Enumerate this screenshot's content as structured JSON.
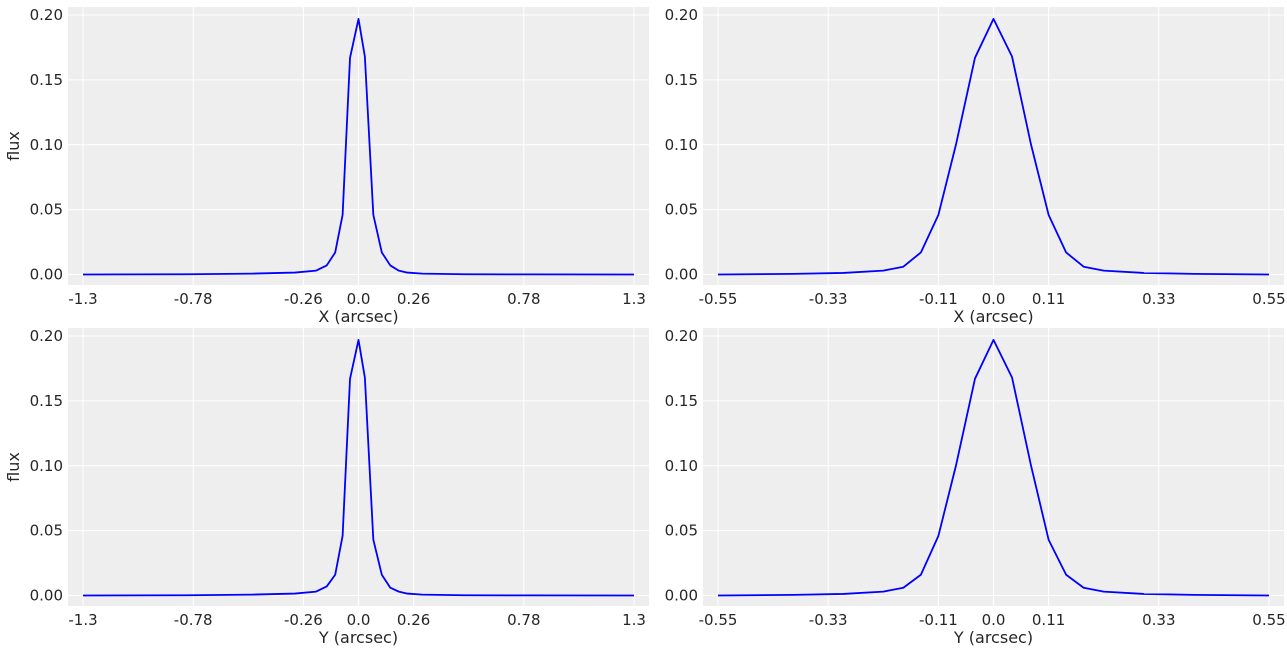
{
  "chart_data": [
    {
      "type": "line",
      "xlabel": "X (arcsec)",
      "ylabel": "flux",
      "xlim": [
        -1.3,
        1.3
      ],
      "ylim": [
        -0.005,
        0.2
      ],
      "xticks": [
        -1.3,
        -0.78,
        -0.26,
        0.0,
        0.26,
        0.78,
        1.3
      ],
      "xtick_labels": [
        "-1.3",
        "-0.78",
        "-0.26",
        "0.0",
        "0.26",
        "0.78",
        "1.3"
      ],
      "yticks": [
        0.0,
        0.05,
        0.1,
        0.15,
        0.2
      ],
      "ytick_labels": [
        "0.00",
        "0.05",
        "0.10",
        "0.15",
        "0.20"
      ],
      "grid": true,
      "series": [
        {
          "color": "#0000ff",
          "x": [
            -1.3,
            -0.8,
            -0.5,
            -0.3,
            -0.2,
            -0.15,
            -0.11,
            -0.075,
            -0.04,
            0.0,
            0.03,
            0.07,
            0.11,
            0.15,
            0.19,
            0.23,
            0.3,
            0.5,
            0.8,
            1.3
          ],
          "y": [
            0.0,
            0.0002,
            0.0007,
            0.0015,
            0.003,
            0.007,
            0.017,
            0.046,
            0.167,
            0.197,
            0.168,
            0.046,
            0.017,
            0.007,
            0.003,
            0.0015,
            0.0007,
            0.0002,
            0.0001,
            0.0
          ]
        }
      ]
    },
    {
      "type": "line",
      "xlabel": "X (arcsec)",
      "ylabel": "",
      "xlim": [
        -0.55,
        0.55
      ],
      "ylim": [
        -0.005,
        0.2
      ],
      "xticks": [
        -0.55,
        -0.33,
        -0.11,
        0.0,
        0.11,
        0.33,
        0.55
      ],
      "xtick_labels": [
        "-0.55",
        "-0.33",
        "-0.11",
        "0.0",
        "0.11",
        "0.33",
        "0.55"
      ],
      "yticks": [
        0.0,
        0.05,
        0.1,
        0.15,
        0.2
      ],
      "ytick_labels": [
        "0.00",
        "0.05",
        "0.10",
        "0.15",
        "0.20"
      ],
      "grid": true,
      "series": [
        {
          "color": "#0000ff",
          "x": [
            -0.55,
            -0.4,
            -0.3,
            -0.22,
            -0.18,
            -0.145,
            -0.11,
            -0.075,
            -0.037,
            0.0,
            0.037,
            0.075,
            0.11,
            0.145,
            0.18,
            0.22,
            0.3,
            0.4,
            0.55
          ],
          "y": [
            0.0,
            0.0005,
            0.0012,
            0.003,
            0.006,
            0.017,
            0.046,
            0.1,
            0.167,
            0.197,
            0.168,
            0.1,
            0.046,
            0.017,
            0.006,
            0.003,
            0.0012,
            0.0005,
            0.0
          ]
        }
      ]
    },
    {
      "type": "line",
      "xlabel": "Y (arcsec)",
      "ylabel": "flux",
      "xlim": [
        -1.3,
        1.3
      ],
      "ylim": [
        -0.005,
        0.2
      ],
      "xticks": [
        -1.3,
        -0.78,
        -0.26,
        0.0,
        0.26,
        0.78,
        1.3
      ],
      "xtick_labels": [
        "-1.3",
        "-0.78",
        "-0.26",
        "0.0",
        "0.26",
        "0.78",
        "1.3"
      ],
      "yticks": [
        0.0,
        0.05,
        0.1,
        0.15,
        0.2
      ],
      "ytick_labels": [
        "0.00",
        "0.05",
        "0.10",
        "0.15",
        "0.20"
      ],
      "grid": true,
      "series": [
        {
          "color": "#0000ff",
          "x": [
            -1.3,
            -0.8,
            -0.5,
            -0.3,
            -0.2,
            -0.15,
            -0.11,
            -0.075,
            -0.04,
            0.0,
            0.03,
            0.07,
            0.11,
            0.15,
            0.19,
            0.23,
            0.3,
            0.5,
            0.8,
            1.3
          ],
          "y": [
            0.0,
            0.0002,
            0.0007,
            0.0015,
            0.003,
            0.007,
            0.016,
            0.046,
            0.167,
            0.197,
            0.168,
            0.043,
            0.016,
            0.006,
            0.003,
            0.0015,
            0.0007,
            0.0002,
            0.0001,
            0.0
          ]
        }
      ]
    },
    {
      "type": "line",
      "xlabel": "Y (arcsec)",
      "ylabel": "",
      "xlim": [
        -0.55,
        0.55
      ],
      "ylim": [
        -0.005,
        0.2
      ],
      "xticks": [
        -0.55,
        -0.33,
        -0.11,
        0.0,
        0.11,
        0.33,
        0.55
      ],
      "xtick_labels": [
        "-0.55",
        "-0.33",
        "-0.11",
        "0.0",
        "0.11",
        "0.33",
        "0.55"
      ],
      "yticks": [
        0.0,
        0.05,
        0.1,
        0.15,
        0.2
      ],
      "ytick_labels": [
        "0.00",
        "0.05",
        "0.10",
        "0.15",
        "0.20"
      ],
      "grid": true,
      "series": [
        {
          "color": "#0000ff",
          "x": [
            -0.55,
            -0.4,
            -0.3,
            -0.22,
            -0.18,
            -0.145,
            -0.11,
            -0.075,
            -0.037,
            0.0,
            0.037,
            0.075,
            0.11,
            0.145,
            0.18,
            0.22,
            0.3,
            0.4,
            0.55
          ],
          "y": [
            0.0,
            0.0005,
            0.0012,
            0.003,
            0.006,
            0.016,
            0.046,
            0.1,
            0.167,
            0.197,
            0.168,
            0.1,
            0.043,
            0.016,
            0.006,
            0.003,
            0.0012,
            0.0005,
            0.0
          ]
        }
      ]
    }
  ]
}
